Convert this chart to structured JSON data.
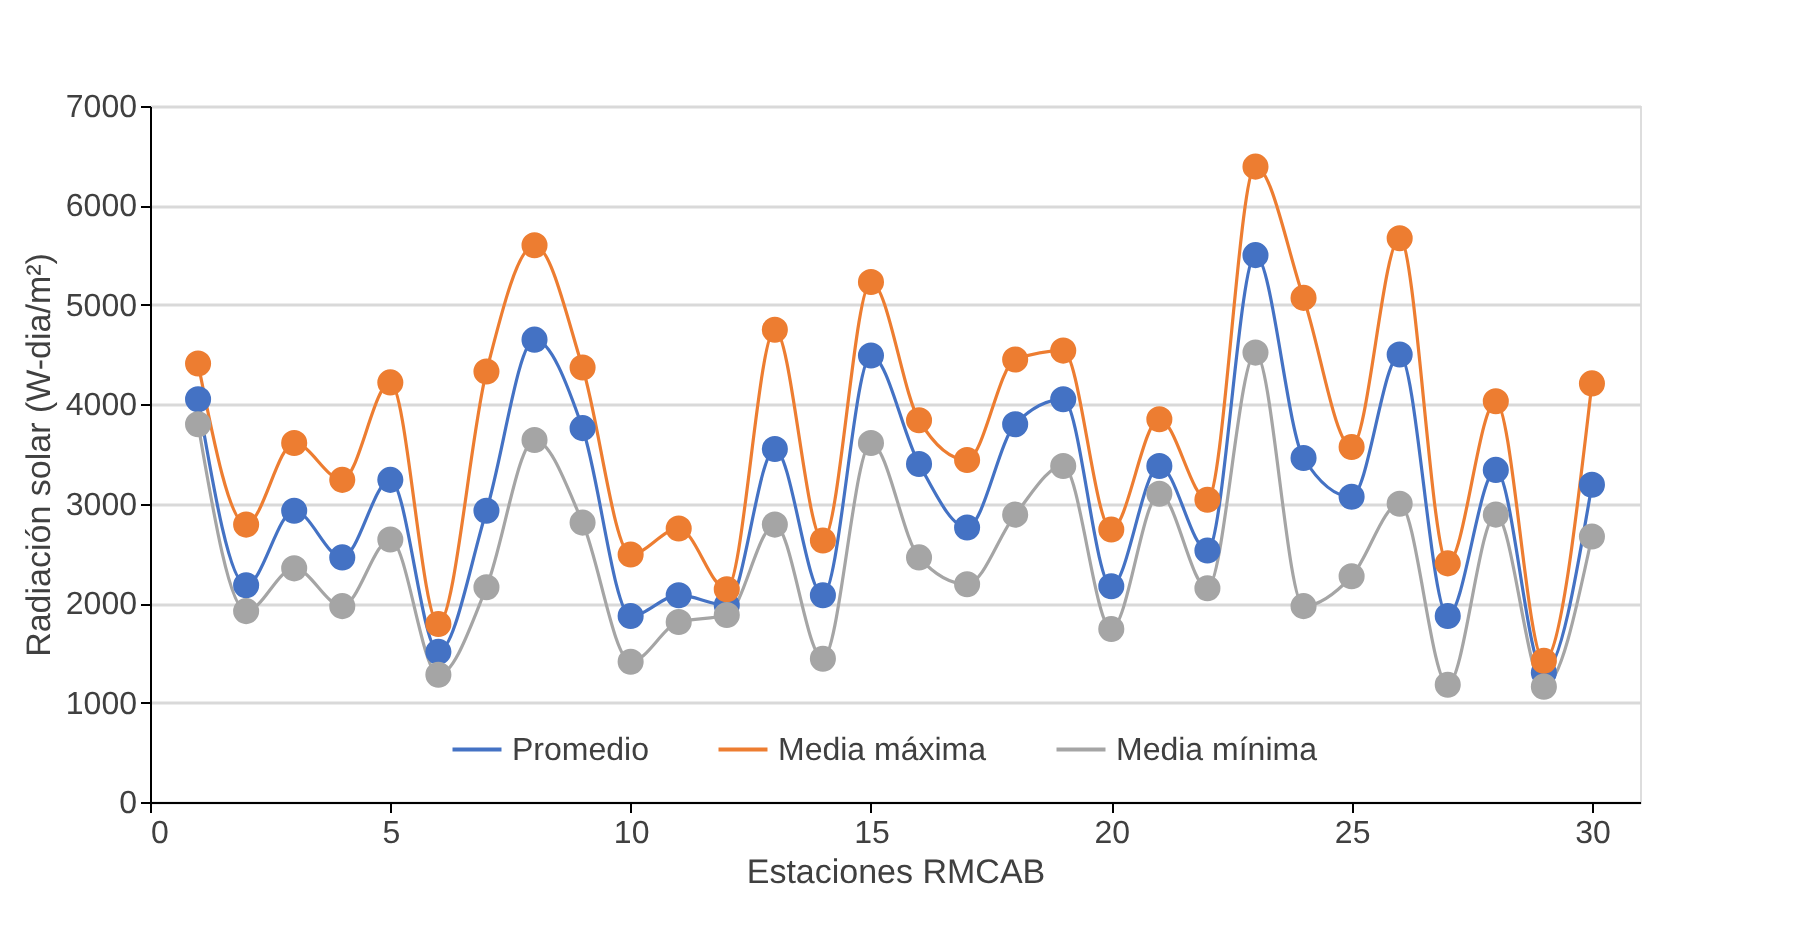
{
  "chart_data": {
    "type": "line",
    "xlabel": "Estaciones RMCAB",
    "ylabel": "Radiación solar (W-dia/m²)",
    "x": [
      1,
      2,
      3,
      4,
      5,
      6,
      7,
      8,
      9,
      10,
      11,
      12,
      13,
      14,
      15,
      16,
      17,
      18,
      19,
      20,
      21,
      22,
      23,
      24,
      25,
      26,
      27,
      28,
      29,
      30
    ],
    "series": [
      {
        "name": "Promedio",
        "color": "#4472c4",
        "values": [
          4050,
          2180,
          2930,
          2460,
          3240,
          1510,
          2930,
          4650,
          3760,
          1870,
          2080,
          1980,
          3550,
          2080,
          4490,
          3400,
          2760,
          3800,
          4050,
          2170,
          3380,
          2530,
          5500,
          3460,
          3070,
          4500,
          1870,
          3340,
          1300,
          3190
        ]
      },
      {
        "name": "Media máxima",
        "color": "#ed7d31",
        "values": [
          4410,
          2790,
          3610,
          3240,
          4220,
          1790,
          4330,
          5600,
          4370,
          2490,
          2750,
          2140,
          4750,
          2630,
          5230,
          3840,
          3440,
          4450,
          4540,
          2740,
          3850,
          3040,
          6390,
          5070,
          3570,
          5670,
          2400,
          4030,
          1420,
          4210
        ]
      },
      {
        "name": "Media mínima",
        "color": "#a5a5a5",
        "values": [
          3800,
          1920,
          2350,
          1970,
          2640,
          1280,
          2160,
          3640,
          2810,
          1410,
          1810,
          1880,
          2790,
          1440,
          3610,
          2460,
          2190,
          2890,
          3380,
          1740,
          3100,
          2150,
          4520,
          1970,
          2270,
          3000,
          1180,
          2890,
          1160,
          2670
        ]
      }
    ],
    "xlim": [
      0,
      31
    ],
    "xticks": [
      0,
      5,
      10,
      15,
      20,
      25,
      30
    ],
    "ylim": [
      0,
      7000
    ],
    "yticks": [
      0,
      1000,
      2000,
      3000,
      4000,
      5000,
      6000,
      7000
    ],
    "grid": "y",
    "legend": "bottom",
    "marker": "circle",
    "line_style": "solid"
  }
}
